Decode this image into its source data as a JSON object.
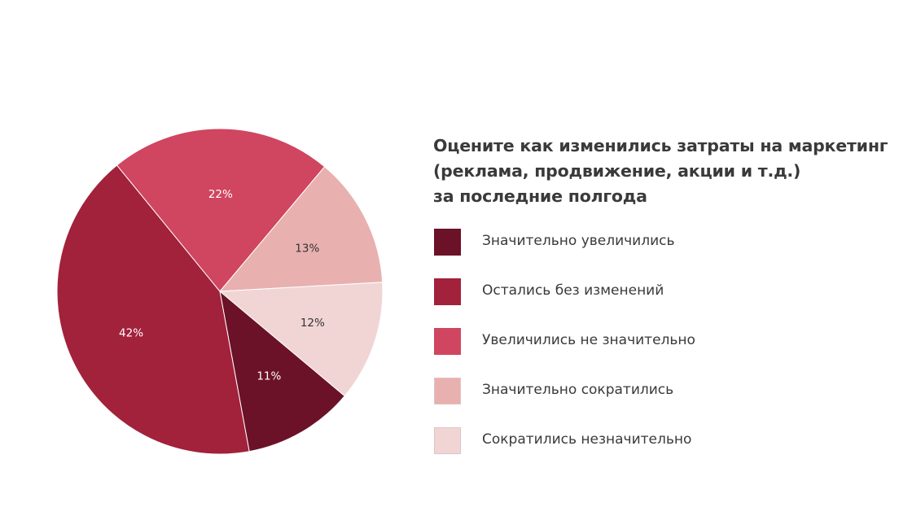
{
  "chart_data": {
    "type": "pie",
    "title_lines": [
      "Оцените как изменились затраты на маркетинг",
      "(реклама, продвижение, акции и т.д.)",
      "за последние полгода"
    ],
    "legend_position": "right",
    "start_angle_deg_clockwise_from_top": 40,
    "slices_clockwise": [
      {
        "label": "Значительно сократились",
        "value": 13,
        "display": "13%",
        "color": "#e9b0b0",
        "label_color": "#333333"
      },
      {
        "label": "Сократились незначительно",
        "value": 12,
        "display": "12%",
        "color": "#f1d5d5",
        "label_color": "#333333"
      },
      {
        "label": "Значительно увеличились",
        "value": 11,
        "display": "11%",
        "color": "#6b1228",
        "label_color": "#ffffff"
      },
      {
        "label": "Остались без изменений",
        "value": 42,
        "display": "42%",
        "color": "#a2213b",
        "label_color": "#ffffff"
      },
      {
        "label": "Увеличились не значительно",
        "value": 22,
        "display": "22%",
        "color": "#d0455f",
        "label_color": "#ffffff"
      }
    ],
    "legend": [
      {
        "label": "Значительно увеличились",
        "color": "#6b1228"
      },
      {
        "label": "Остались без изменений",
        "color": "#a2213b"
      },
      {
        "label": "Увеличились не значительно",
        "color": "#d0455f"
      },
      {
        "label": "Значительно сократились",
        "color": "#e9b0b0"
      },
      {
        "label": "Сократились незначительно",
        "color": "#f1d5d5"
      }
    ]
  }
}
